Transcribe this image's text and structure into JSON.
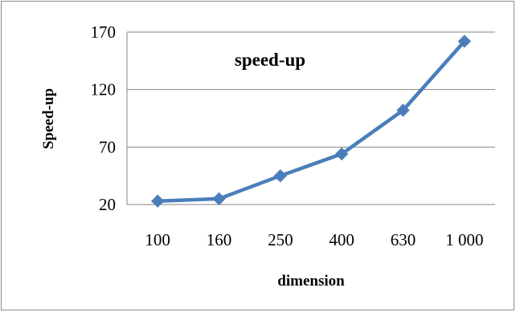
{
  "chart_data": {
    "type": "line",
    "title": "speed-up",
    "xlabel": "dimension",
    "ylabel": "Speed-up",
    "categories": [
      "100",
      "160",
      "250",
      "400",
      "630",
      "1 000"
    ],
    "series": [
      {
        "values": [
          23,
          25,
          45,
          64,
          102,
          162
        ]
      }
    ],
    "ylim": [
      20,
      170
    ],
    "yticks": [
      20,
      70,
      120,
      170
    ],
    "grid": "horizontal",
    "legend": "none",
    "colors": {
      "series": "#4a7ebb",
      "grid": "#868686",
      "frame": "#8c8c8c"
    }
  }
}
